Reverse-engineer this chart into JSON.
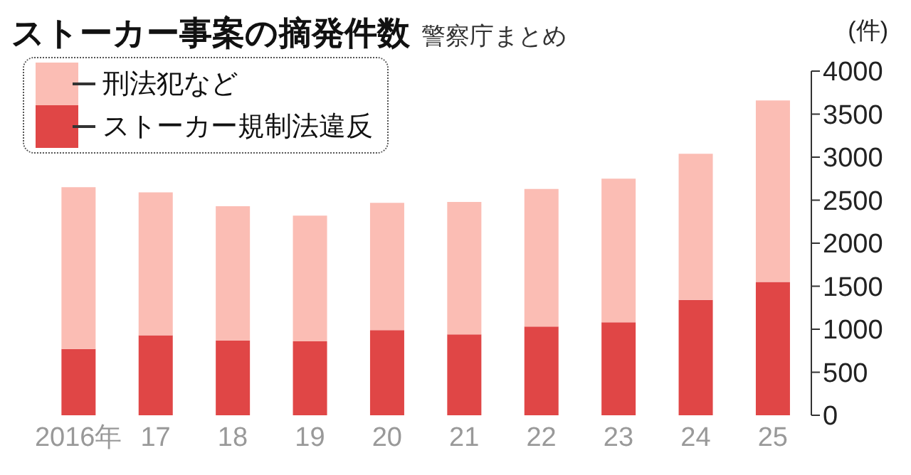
{
  "chart_data": {
    "type": "bar",
    "title": "ストーカー事案の摘発件数",
    "subtitle": "警察庁まとめ",
    "ylabel": "(件)",
    "categories": [
      "2016年",
      "17",
      "18",
      "19",
      "20",
      "21",
      "22",
      "23",
      "24",
      "25"
    ],
    "stacked": true,
    "legend": "top left",
    "grid": false,
    "ylim": [
      0,
      4000
    ],
    "yticks": [
      0,
      500,
      1000,
      1500,
      2000,
      2500,
      3000,
      3500,
      4000
    ],
    "series": [
      {
        "name": "ストーカー規制法違反",
        "color": "#e04646",
        "values": [
          770,
          930,
          870,
          860,
          990,
          940,
          1030,
          1080,
          1340,
          1550
        ]
      },
      {
        "name": "刑法犯など",
        "color": "#fbbdb4",
        "values": [
          1880,
          1660,
          1560,
          1460,
          1480,
          1540,
          1600,
          1670,
          1700,
          2110
        ]
      }
    ]
  }
}
